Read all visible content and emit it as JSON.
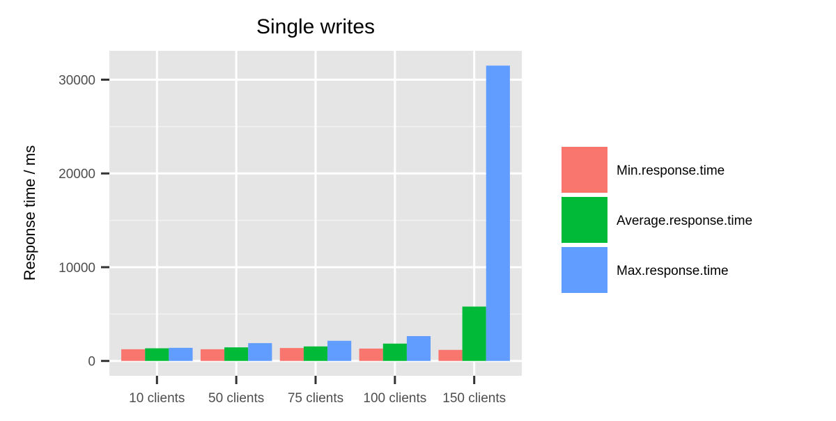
{
  "chart_data": {
    "type": "bar",
    "title": "Single writes",
    "xlabel": "",
    "ylabel": "Response time / ms",
    "categories": [
      "10 clients",
      "50 clients",
      "75 clients",
      "100 clients",
      "150 clients"
    ],
    "series": [
      {
        "name": "Min.response.time",
        "color": "#F8766D",
        "values": [
          1250,
          1250,
          1380,
          1320,
          1180
        ]
      },
      {
        "name": "Average.response.time",
        "color": "#00BA38",
        "values": [
          1350,
          1450,
          1550,
          1850,
          5800
        ]
      },
      {
        "name": "Max.response.time",
        "color": "#619CFF",
        "values": [
          1400,
          1900,
          2150,
          2650,
          31500
        ]
      }
    ],
    "yticks": [
      0,
      10000,
      20000,
      30000
    ],
    "ytick_labels": [
      "0",
      "10000",
      "20000",
      "30000"
    ],
    "ylim": [
      -1580,
      33080
    ],
    "grid": true,
    "legend_position": "right",
    "panel_background": "#E5E5E5"
  }
}
